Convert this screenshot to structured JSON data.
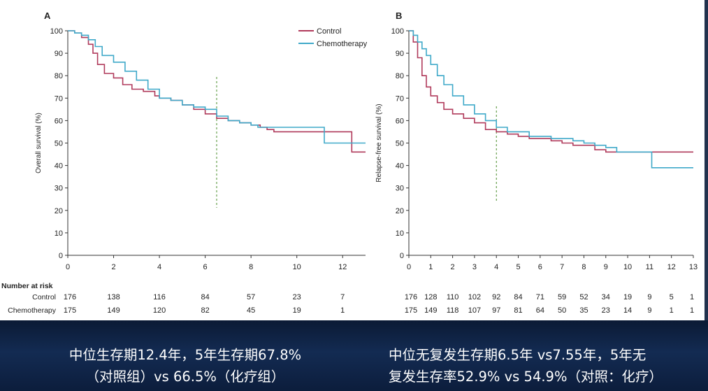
{
  "chart_data": [
    {
      "type": "line",
      "panel_label": "A",
      "ylabel": "Overall survival (%)",
      "xlim": [
        0,
        13
      ],
      "ylim": [
        0,
        100
      ],
      "x_ticks": [
        0,
        2,
        4,
        6,
        8,
        10,
        12
      ],
      "y_ticks": [
        0,
        10,
        20,
        30,
        40,
        50,
        60,
        70,
        80,
        90,
        100
      ],
      "legend": [
        "Control",
        "Chemotherapy"
      ],
      "legend_position": "top-right",
      "reference_line_x": 6.5,
      "series": [
        {
          "name": "Control",
          "color": "#b03a5b",
          "points": [
            [
              0,
              100
            ],
            [
              0.3,
              99
            ],
            [
              0.6,
              97
            ],
            [
              0.9,
              94
            ],
            [
              1.1,
              90
            ],
            [
              1.3,
              85
            ],
            [
              1.6,
              81
            ],
            [
              2.0,
              79
            ],
            [
              2.4,
              76
            ],
            [
              2.8,
              74
            ],
            [
              3.3,
              73
            ],
            [
              3.8,
              71
            ],
            [
              4.0,
              70
            ],
            [
              4.5,
              69
            ],
            [
              5.0,
              67
            ],
            [
              5.5,
              65
            ],
            [
              6.0,
              63
            ],
            [
              6.5,
              61
            ],
            [
              7.0,
              60
            ],
            [
              7.5,
              59
            ],
            [
              8.0,
              58
            ],
            [
              8.4,
              57
            ],
            [
              8.7,
              56
            ],
            [
              9.0,
              55
            ],
            [
              10.0,
              55
            ],
            [
              11.0,
              55
            ],
            [
              12.4,
              55
            ],
            [
              12.4,
              46
            ],
            [
              13.0,
              46
            ]
          ]
        },
        {
          "name": "Chemotherapy",
          "color": "#3fa9c9",
          "points": [
            [
              0,
              100
            ],
            [
              0.3,
              99
            ],
            [
              0.6,
              98
            ],
            [
              0.9,
              96
            ],
            [
              1.2,
              93
            ],
            [
              1.5,
              89
            ],
            [
              2.0,
              86
            ],
            [
              2.5,
              82
            ],
            [
              3.0,
              78
            ],
            [
              3.5,
              74
            ],
            [
              4.0,
              70
            ],
            [
              4.5,
              69
            ],
            [
              5.0,
              67
            ],
            [
              5.5,
              66
            ],
            [
              6.0,
              65
            ],
            [
              6.5,
              62
            ],
            [
              7.0,
              60
            ],
            [
              7.5,
              59
            ],
            [
              8.0,
              58
            ],
            [
              8.3,
              57
            ],
            [
              9.0,
              57
            ],
            [
              10.0,
              57
            ],
            [
              11.2,
              57
            ],
            [
              11.2,
              50
            ],
            [
              13.0,
              50
            ]
          ]
        }
      ],
      "risk_table": {
        "title": "Number at risk",
        "times": [
          0,
          2,
          4,
          6,
          8,
          10,
          12
        ],
        "rows": [
          {
            "label": "Control",
            "values": [
              "176",
              "138",
              "116",
              "84",
              "57",
              "23",
              "7"
            ]
          },
          {
            "label": "Chemotherapy",
            "values": [
              "175",
              "149",
              "120",
              "82",
              "45",
              "19",
              "1"
            ]
          }
        ]
      }
    },
    {
      "type": "line",
      "panel_label": "B",
      "ylabel": "Relapse-free survival (%)",
      "xlim": [
        0,
        13
      ],
      "ylim": [
        0,
        100
      ],
      "x_ticks": [
        0,
        1,
        2,
        3,
        4,
        5,
        6,
        7,
        8,
        9,
        10,
        11,
        12,
        13
      ],
      "y_ticks": [
        0,
        10,
        20,
        30,
        40,
        50,
        60,
        70,
        80,
        90,
        100
      ],
      "reference_line_x": 4,
      "series": [
        {
          "name": "Control",
          "color": "#b03a5b",
          "points": [
            [
              0,
              100
            ],
            [
              0.2,
              95
            ],
            [
              0.4,
              88
            ],
            [
              0.6,
              80
            ],
            [
              0.8,
              75
            ],
            [
              1.0,
              71
            ],
            [
              1.3,
              68
            ],
            [
              1.6,
              65
            ],
            [
              2.0,
              63
            ],
            [
              2.5,
              61
            ],
            [
              3.0,
              59
            ],
            [
              3.5,
              56
            ],
            [
              4.0,
              55
            ],
            [
              4.5,
              54
            ],
            [
              5.0,
              53
            ],
            [
              5.5,
              52
            ],
            [
              6.0,
              52
            ],
            [
              6.5,
              51
            ],
            [
              7.0,
              50
            ],
            [
              7.5,
              49
            ],
            [
              8.0,
              49
            ],
            [
              8.5,
              47
            ],
            [
              9.0,
              46
            ],
            [
              10.0,
              46
            ],
            [
              11.0,
              46
            ],
            [
              12.0,
              46
            ],
            [
              13.0,
              46
            ]
          ]
        },
        {
          "name": "Chemotherapy",
          "color": "#3fa9c9",
          "points": [
            [
              0,
              100
            ],
            [
              0.2,
              98
            ],
            [
              0.4,
              95
            ],
            [
              0.6,
              92
            ],
            [
              0.8,
              89
            ],
            [
              1.0,
              85
            ],
            [
              1.3,
              80
            ],
            [
              1.6,
              76
            ],
            [
              2.0,
              71
            ],
            [
              2.5,
              67
            ],
            [
              3.0,
              63
            ],
            [
              3.5,
              60
            ],
            [
              4.0,
              57
            ],
            [
              4.5,
              55
            ],
            [
              5.0,
              55
            ],
            [
              5.5,
              53
            ],
            [
              6.0,
              53
            ],
            [
              6.5,
              52
            ],
            [
              7.0,
              52
            ],
            [
              7.5,
              51
            ],
            [
              8.0,
              50
            ],
            [
              8.5,
              49
            ],
            [
              9.0,
              48
            ],
            [
              9.5,
              46
            ],
            [
              10.0,
              46
            ],
            [
              11.1,
              46
            ],
            [
              11.1,
              39
            ],
            [
              13.0,
              39
            ]
          ]
        }
      ],
      "risk_table": {
        "times": [
          0,
          1,
          2,
          3,
          4,
          5,
          6,
          7,
          8,
          9,
          10,
          11,
          12,
          13
        ],
        "rows": [
          {
            "label": "",
            "values": [
              "176",
              "128",
              "110",
              "102",
              "92",
              "84",
              "71",
              "59",
              "52",
              "34",
              "19",
              "9",
              "5",
              "1"
            ]
          },
          {
            "label": "",
            "values": [
              "175",
              "149",
              "118",
              "107",
              "97",
              "81",
              "64",
              "50",
              "35",
              "23",
              "14",
              "9",
              "1",
              "1"
            ]
          }
        ]
      }
    }
  ],
  "captions": {
    "left": [
      "中位生存期12.4年，5年生存期67.8%",
      "（对照组）vs 66.5%（化疗组）"
    ],
    "right": [
      "中位无复发生存期6.5年 vs7.55年，5年无",
      "复发生存率52.9% vs 54.9%（对照：化疗）"
    ]
  }
}
